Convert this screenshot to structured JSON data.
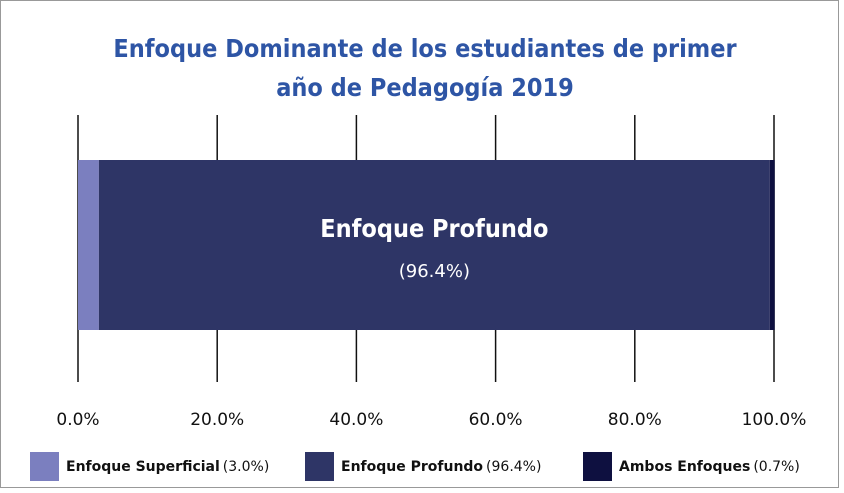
{
  "chart_data": {
    "type": "bar",
    "orientation": "horizontal",
    "stacked": true,
    "title": [
      "Enfoque Dominante de los estudiantes de primer",
      "año de Pedagogía 2019"
    ],
    "series": [
      {
        "name": "Enfoque Superficial",
        "color": "#7b7fbf",
        "values": [
          3.0
        ],
        "value_labels": [
          "(3.0%)"
        ]
      },
      {
        "name": "Enfoque Profundo",
        "color": "#2e3566",
        "values": [
          96.4
        ],
        "value_labels": [
          "(96.4%)"
        ]
      },
      {
        "name": "Ambos Enfoques",
        "color": "#0e1040",
        "values": [
          0.7
        ],
        "value_labels": [
          "(0.7%)"
        ]
      }
    ],
    "xlim": [
      0,
      100
    ],
    "xticks": [
      {
        "value": 0,
        "label": "0.0%"
      },
      {
        "value": 20,
        "label": "20.0%"
      },
      {
        "value": 40,
        "label": "40.0%"
      },
      {
        "value": 60,
        "label": "60.0%"
      },
      {
        "value": 80,
        "label": "80.0%"
      },
      {
        "value": 100,
        "label": "100.0%"
      }
    ],
    "grid": true,
    "legend": "bottom",
    "bar_label_series": 1
  }
}
